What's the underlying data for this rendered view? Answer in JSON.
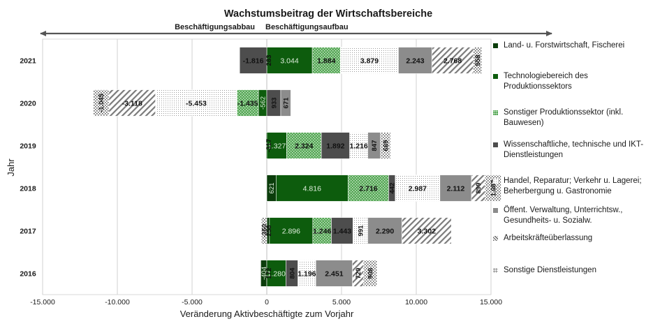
{
  "chart_data": {
    "type": "bar",
    "orientation": "horizontal",
    "stacked": true,
    "title": "Wachstumsbeitrag  der Wirtschaftsbereiche",
    "xlabel": "Veränderung Aktivbeschäftigte zum Vorjahr",
    "ylabel": "Jahr",
    "xlim": [
      -15000,
      15000
    ],
    "xticks": [
      "-15.000",
      "-10.000",
      "-5.000",
      "0",
      "5.000",
      "10.000",
      "15.000"
    ],
    "xtick_values": [
      -15000,
      -10000,
      -5000,
      0,
      5000,
      10000,
      15000
    ],
    "arrow_left_label": "Beschäftigungsabbau",
    "arrow_right_label": "Beschäftigungsaufbau",
    "categories": [
      "2021",
      "2020",
      "2019",
      "2018",
      "2017",
      "2016"
    ],
    "series": [
      {
        "name": "Land- u. Forstwirtschaft, Fischerei",
        "color": "#0b3d0b",
        "pattern": "solid",
        "values": [
          0,
          0,
          -50,
          621,
          180,
          -404
        ],
        "labels": [
          "",
          "",
          "",
          "621",
          "",
          "-404"
        ]
      },
      {
        "name": "Technologiebereich des Produktionssektors",
        "color": "#0d5c0d",
        "pattern": "solid",
        "values": [
          3044,
          -562,
          1327,
          4816,
          2896,
          1280
        ],
        "labels": [
          "3.044",
          "-562",
          "1.327",
          "4.816",
          "2.896",
          "1.280"
        ]
      },
      {
        "name": "Sonstiger Produktionssektor (inkl. Bauwesen)",
        "color": "#57a857",
        "pattern": "dots",
        "values": [
          1884,
          -1435,
          2324,
          2716,
          1246,
          0
        ],
        "labels": [
          "1.884",
          "-1.435",
          "2.324",
          "2.716",
          "1.246",
          ""
        ]
      },
      {
        "name": "Wissenschaftliche, technische und IKT-Dienstleistungen",
        "color": "#4d4d4d",
        "pattern": "solid",
        "values": [
          -1816,
          933,
          1892,
          442,
          1443,
          804
        ],
        "labels": [
          "-1.816",
          "933",
          "1.892",
          "442",
          "1.443",
          "804"
        ]
      },
      {
        "name": "Handel, Reparatur; Verkehr u. Lagerei; Beherbergung u. Gastronomie",
        "color": "#c8c8c8",
        "pattern": "fine",
        "values": [
          3879,
          -5453,
          1216,
          2987,
          991,
          1196
        ],
        "labels": [
          "3.879",
          "-5.453",
          "1.216",
          "2.987",
          "991",
          "1.196"
        ]
      },
      {
        "name": "Öffent. Verwaltung, Unterrichtsw., Gesundheits- u. Sozialw.",
        "color": "#8c8c8c",
        "pattern": "solid",
        "values": [
          2243,
          671,
          847,
          2112,
          2290,
          2451
        ],
        "labels": [
          "2.243",
          "671",
          "847",
          "2.112",
          "2.290",
          "2.451"
        ]
      },
      {
        "name": "Arbeitskräfteüberlassung",
        "color": "#7a7a7a",
        "pattern": "diag",
        "values": [
          2768,
          -3118,
          0,
          899,
          3302,
          729
        ],
        "labels": [
          "2.768",
          "-3.118",
          "",
          "899",
          "3.302",
          "729"
        ]
      },
      {
        "name": "Sonstige Dienstleistungen",
        "color": "#9a9a9a",
        "pattern": "coarse",
        "values": [
          558,
          -1045,
          669,
          1082,
          -360,
          908
        ],
        "labels": [
          "558",
          "-1.045",
          "669",
          "1.082",
          "-360",
          "908"
        ]
      }
    ],
    "extra_labels": [
      {
        "year": "2021",
        "text": "283"
      },
      {
        "year": "2019",
        "text": "-317"
      },
      {
        "year": "2017",
        "text": "258"
      },
      {
        "year": "2016",
        "text": "172"
      }
    ]
  }
}
